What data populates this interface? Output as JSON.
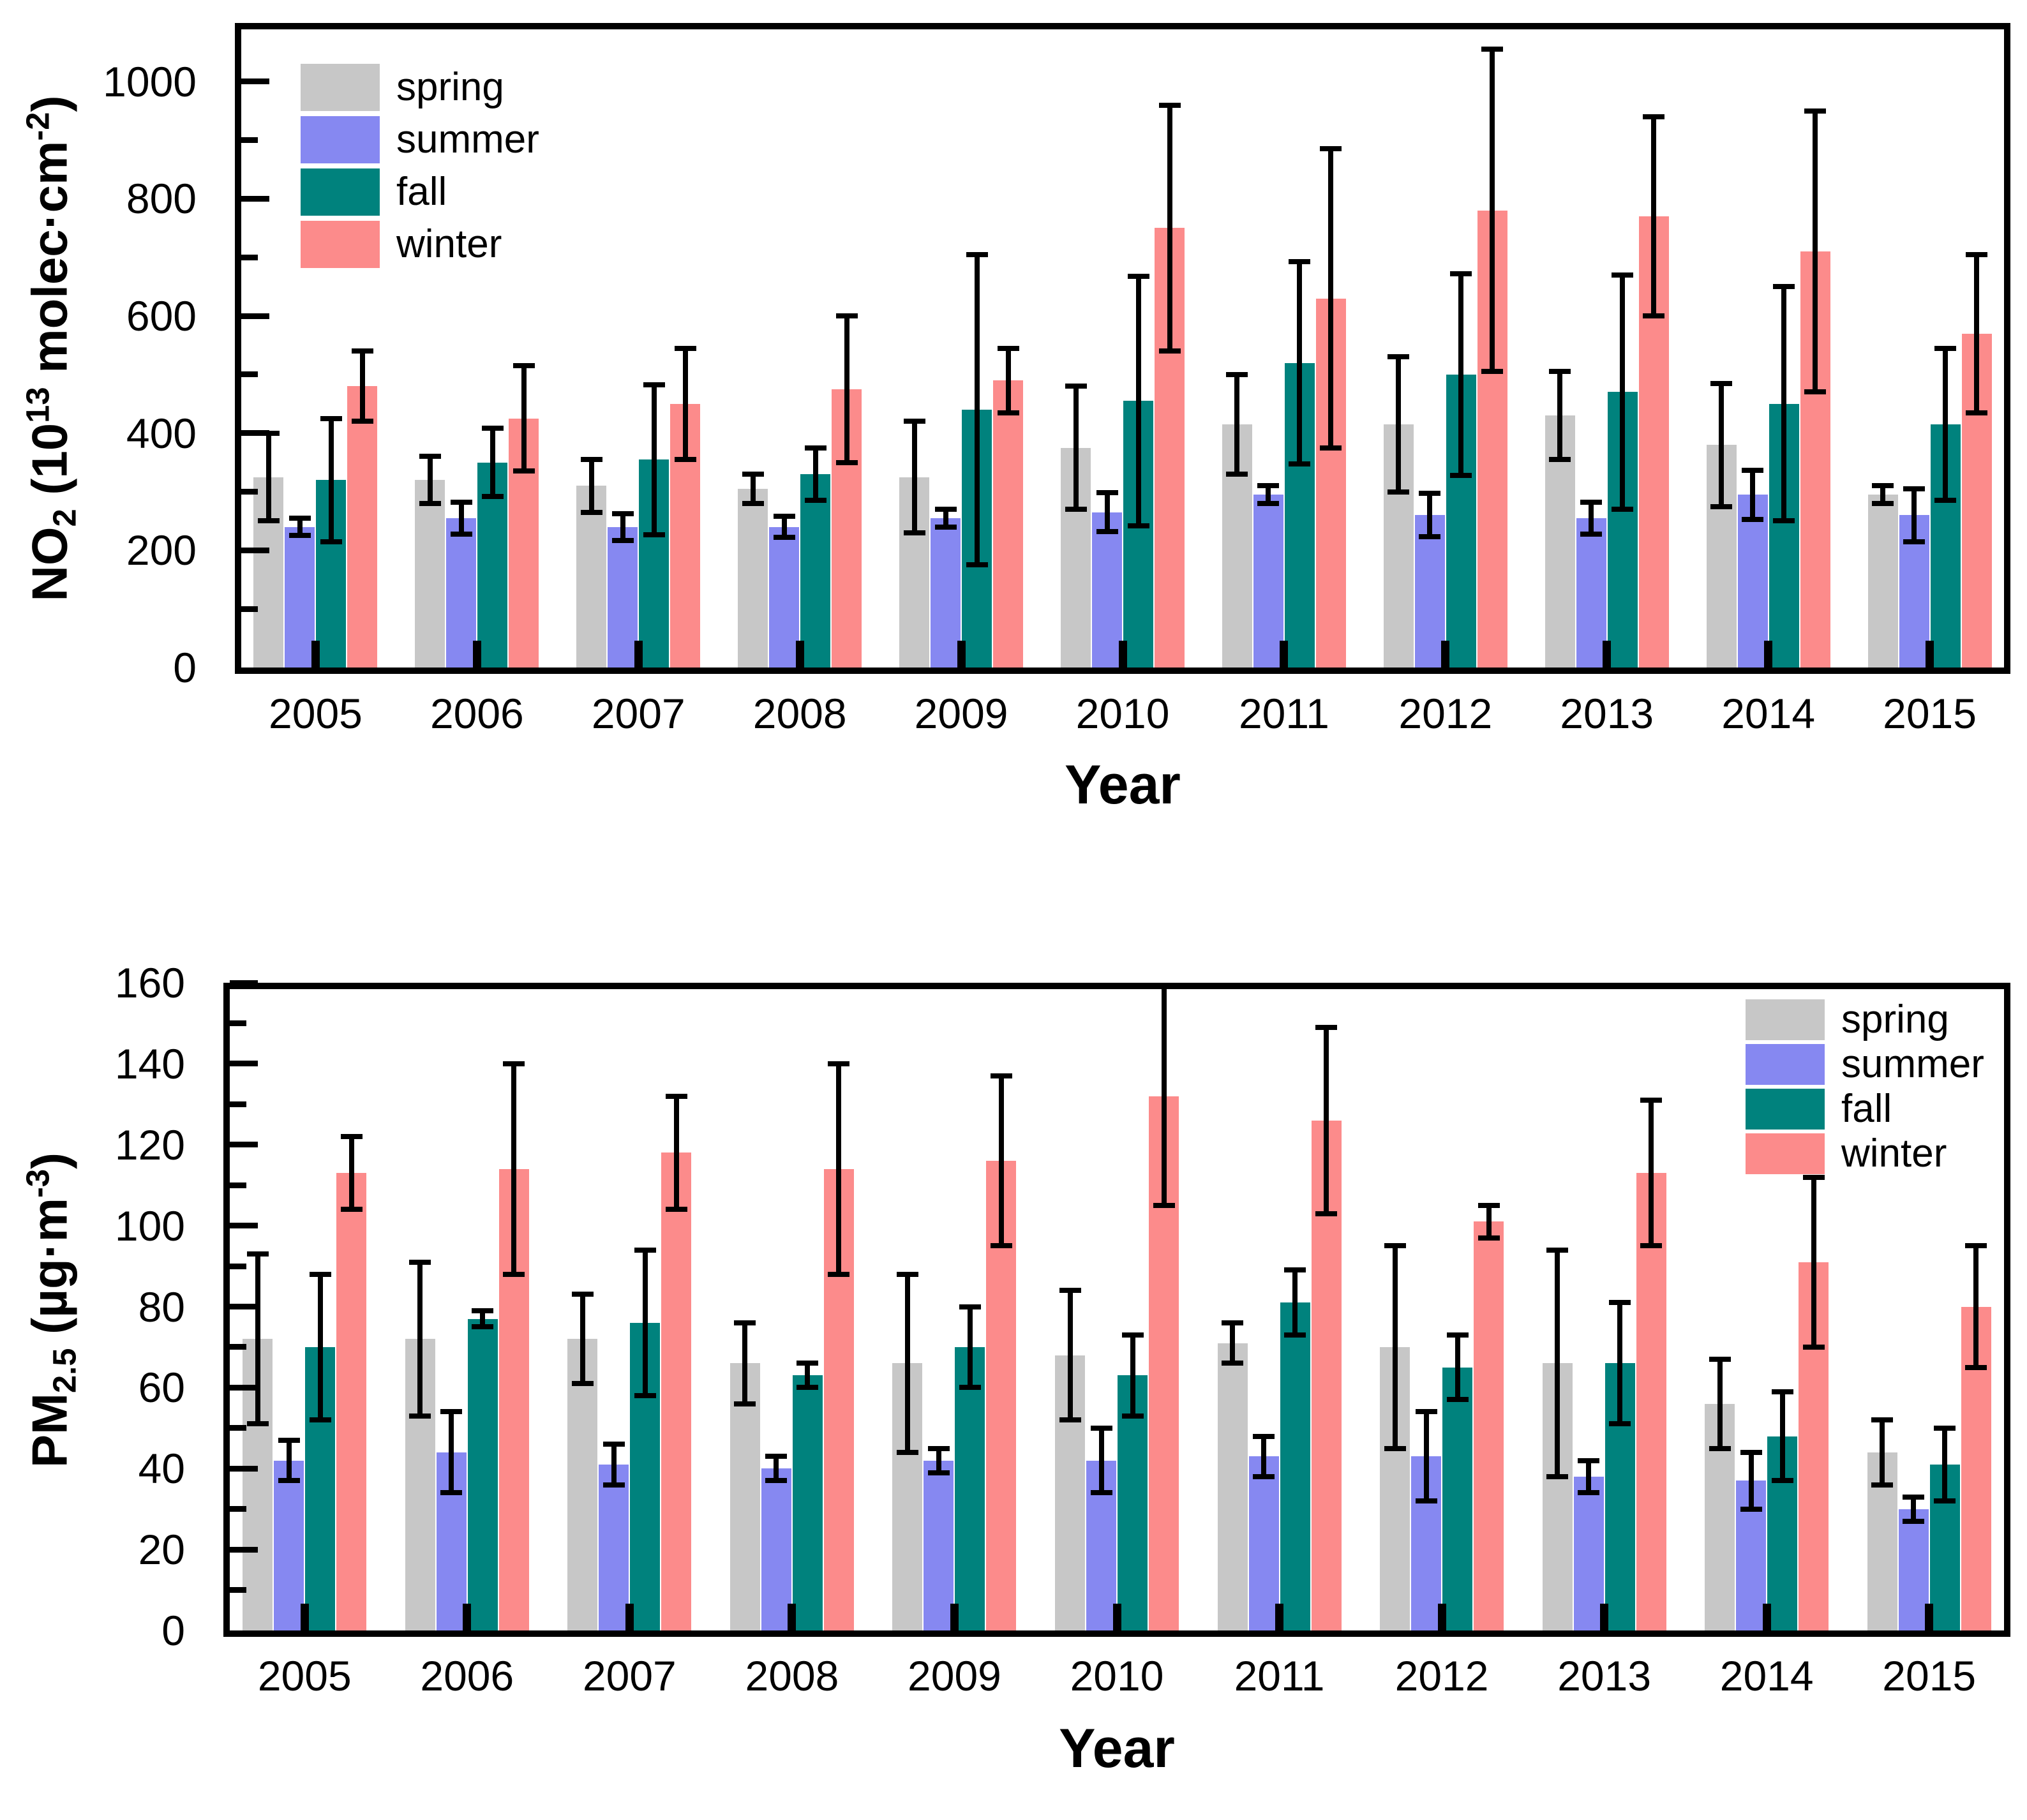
{
  "figure": {
    "background": "#ffffff"
  },
  "chart_data": [
    {
      "type": "bar",
      "panel": "NO2",
      "title": "",
      "xlabel": "Year",
      "ylabel_plain": "NO2 (10^13 molec·cm^-2)",
      "ylabel_segments": [
        [
          "t",
          "NO"
        ],
        [
          "sub",
          "2"
        ],
        [
          "t",
          " (10"
        ],
        [
          "sup",
          "13"
        ],
        [
          "t",
          " molec·cm"
        ],
        [
          "sup",
          "-2"
        ],
        [
          "t",
          ")"
        ]
      ],
      "ylim": [
        0,
        1100
      ],
      "yticks": [
        0,
        200,
        400,
        600,
        800,
        1000
      ],
      "ytick_minor_step": 100,
      "grid": false,
      "legend_position": "top-left",
      "categories": [
        "2005",
        "2006",
        "2007",
        "2008",
        "2009",
        "2010",
        "2011",
        "2012",
        "2013",
        "2014",
        "2015"
      ],
      "series": [
        {
          "name": "spring",
          "color": "#c7c7c7",
          "values": [
            325,
            320,
            310,
            305,
            325,
            375,
            415,
            415,
            430,
            380,
            295
          ],
          "errors": [
            75,
            40,
            45,
            25,
            95,
            105,
            85,
            115,
            75,
            105,
            15
          ]
        },
        {
          "name": "summer",
          "color": "#8688f1",
          "values": [
            240,
            255,
            240,
            240,
            255,
            265,
            295,
            260,
            255,
            295,
            260
          ],
          "errors": [
            15,
            27,
            23,
            18,
            15,
            33,
            15,
            37,
            27,
            42,
            45
          ]
        },
        {
          "name": "fall",
          "color": "#00827d",
          "values": [
            320,
            350,
            355,
            330,
            440,
            455,
            520,
            500,
            470,
            450,
            415
          ],
          "errors": [
            105,
            58,
            128,
            45,
            265,
            213,
            173,
            172,
            200,
            200,
            130
          ]
        },
        {
          "name": "winter",
          "color": "#fc8b8b",
          "values": [
            480,
            425,
            450,
            475,
            490,
            750,
            630,
            780,
            770,
            710,
            570
          ],
          "errors": [
            60,
            90,
            95,
            125,
            55,
            210,
            255,
            275,
            170,
            240,
            135
          ]
        }
      ]
    },
    {
      "type": "bar",
      "panel": "PM2.5",
      "title": "",
      "xlabel": "Year",
      "ylabel_plain": "PM2.5 (µg·m^-3)",
      "ylabel_segments": [
        [
          "t",
          "PM"
        ],
        [
          "sub",
          "2.5"
        ],
        [
          "t",
          " (µg·m"
        ],
        [
          "sup",
          "-3"
        ],
        [
          "t",
          ")"
        ]
      ],
      "ylim": [
        0,
        160
      ],
      "yticks": [
        0,
        20,
        40,
        60,
        80,
        100,
        120,
        140,
        160
      ],
      "ytick_minor_step": 10,
      "grid": false,
      "legend_position": "top-right",
      "categories": [
        "2005",
        "2006",
        "2007",
        "2008",
        "2009",
        "2010",
        "2011",
        "2012",
        "2013",
        "2014",
        "2015"
      ],
      "series": [
        {
          "name": "spring",
          "color": "#c7c7c7",
          "values": [
            72,
            72,
            72,
            66,
            66,
            68,
            71,
            70,
            66,
            56,
            44
          ],
          "errors": [
            21,
            19,
            11,
            10,
            22,
            16,
            5,
            25,
            28,
            11,
            8
          ]
        },
        {
          "name": "summer",
          "color": "#8688f1",
          "values": [
            42,
            44,
            41,
            40,
            42,
            42,
            43,
            43,
            38,
            37,
            30
          ],
          "errors": [
            5,
            10,
            5,
            3,
            3,
            8,
            5,
            11,
            4,
            7,
            3
          ]
        },
        {
          "name": "fall",
          "color": "#00827d",
          "values": [
            70,
            77,
            76,
            63,
            70,
            63,
            81,
            65,
            66,
            48,
            41
          ],
          "errors": [
            18,
            2,
            18,
            3,
            10,
            10,
            8,
            8,
            15,
            11,
            9
          ]
        },
        {
          "name": "winter",
          "color": "#fc8b8b",
          "values": [
            113,
            114,
            118,
            114,
            116,
            132,
            126,
            101,
            113,
            91,
            80
          ],
          "errors": [
            9,
            26,
            14,
            26,
            21,
            27,
            23,
            4,
            18,
            21,
            15
          ]
        }
      ]
    }
  ]
}
